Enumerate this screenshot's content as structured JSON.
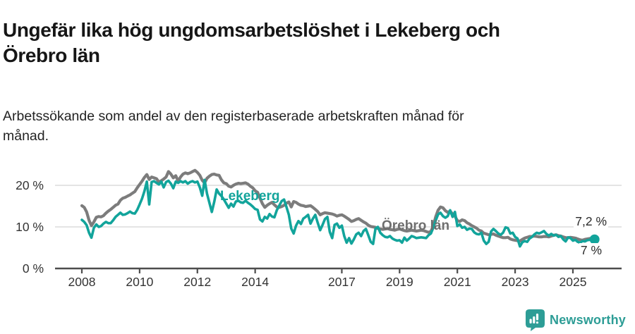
{
  "header": {
    "title_line1": "Ungefär lika hög ungdomsarbetslöshet i Lekeberg och",
    "title_line2": "Örebro län",
    "subtitle_line1": "Arbetssökande som andel av den registerbaserade arbetskraften månad för",
    "subtitle_line2": "månad."
  },
  "footer": {
    "brand": "Newsworthy",
    "brand_color": "#2d9d96"
  },
  "chart_data": {
    "type": "line",
    "title": "Ungefär lika hög ungdomsarbetslöshet i Lekeberg och Örebro län",
    "subtitle": "Arbetssökande som andel av den registerbaserade arbetskraften månad för månad.",
    "unit": "%",
    "frequency": "monthly",
    "start_year": 2008,
    "end_point": "2025-10",
    "ylim": [
      0,
      25
    ],
    "grid": "horizontal",
    "colors": {
      "lekeberg": "#12a49b",
      "orebro": "#7c7c7c",
      "axis": "#4d4d4d",
      "gridline": "#dbdbdb"
    },
    "x_ticks": [
      {
        "value": 2008,
        "label": "2008"
      },
      {
        "value": 2010,
        "label": "2010"
      },
      {
        "value": 2012,
        "label": "2012"
      },
      {
        "value": 2014,
        "label": "2014"
      },
      {
        "value": 2017,
        "label": "2017"
      },
      {
        "value": 2019,
        "label": "2019"
      },
      {
        "value": 2021,
        "label": "2021"
      },
      {
        "value": 2023,
        "label": "2023"
      },
      {
        "value": 2025,
        "label": "2025"
      }
    ],
    "y_ticks": [
      {
        "value": 0,
        "label": "0 %"
      },
      {
        "value": 10,
        "label": "10 %"
      },
      {
        "value": 20,
        "label": "20 %"
      }
    ],
    "series": [
      {
        "name": "Örebro län",
        "color": "#7c7c7c",
        "end_label": "7,2 %",
        "end_value": 7.2,
        "values": [
          15.1,
          14.7,
          13.6,
          11.6,
          10.3,
          11.2,
          12.3,
          12.5,
          12.4,
          12.7,
          13.3,
          13.8,
          14.2,
          14.7,
          15.2,
          15.5,
          16.4,
          16.9,
          17.1,
          17.4,
          17.7,
          18.1,
          18.5,
          19.4,
          20.2,
          21.0,
          21.9,
          22.6,
          21.4,
          22.0,
          21.8,
          21.6,
          20.8,
          21.1,
          21.5,
          22.0,
          23.3,
          22.7,
          21.8,
          22.3,
          21.0,
          22.0,
          22.7,
          23.0,
          22.8,
          23.0,
          23.3,
          23.6,
          23.1,
          22.4,
          21.2,
          20.6,
          21.7,
          22.2,
          22.6,
          22.7,
          22.5,
          22.4,
          21.3,
          20.6,
          20.4,
          19.8,
          19.6,
          20.0,
          20.3,
          20.5,
          20.4,
          20.5,
          20.6,
          20.3,
          19.8,
          19.4,
          18.7,
          18.3,
          16.9,
          15.6,
          14.7,
          15.2,
          15.6,
          15.9,
          15.3,
          14.8,
          14.7,
          14.9,
          15.2,
          15.7,
          16.0,
          14.8,
          16.1,
          15.9,
          15.5,
          15.2,
          15.1,
          14.9,
          15.0,
          15.1,
          14.7,
          14.2,
          13.7,
          12.9,
          13.2,
          13.4,
          13.3,
          13.2,
          13.1,
          12.9,
          12.6,
          12.8,
          12.9,
          12.6,
          12.2,
          11.8,
          11.3,
          11.5,
          11.8,
          12.0,
          11.6,
          11.2,
          10.9,
          10.4,
          10.1,
          10.0,
          9.9,
          9.6,
          9.5,
          9.4,
          9.5,
          9.6,
          9.4,
          9.3,
          9.2,
          9.4,
          9.5,
          9.3,
          9.1,
          9.0,
          9.1,
          9.2,
          9.1,
          9.0,
          9.1,
          9.2,
          9.1,
          8.9,
          8.7,
          8.9,
          10.2,
          12.4,
          14.0,
          14.8,
          14.6,
          13.9,
          13.5,
          13.8,
          13.1,
          12.6,
          11.5,
          11.3,
          11.7,
          11.5,
          11.0,
          10.7,
          10.3,
          10.0,
          9.7,
          9.2,
          9.0,
          8.5,
          8.3,
          8.1,
          8.2,
          8.3,
          8.0,
          7.8,
          7.6,
          7.4,
          7.4,
          7.5,
          7.1,
          6.9,
          6.8,
          6.7,
          6.6,
          7.0,
          7.3,
          7.5,
          7.7,
          7.7,
          7.8,
          7.7,
          7.6,
          7.6,
          7.7,
          7.7,
          7.6,
          7.8,
          8.0,
          8.1,
          7.9,
          7.8,
          7.6,
          7.4,
          7.4,
          7.5,
          7.4,
          7.3,
          7.1,
          6.9,
          6.8,
          7.0,
          7.1,
          7.2,
          7.2,
          7.2
        ]
      },
      {
        "name": "Lekeberg",
        "color": "#12a49b",
        "end_label": "7 %",
        "end_value": 7.0,
        "values": [
          11.7,
          11.2,
          10.4,
          8.6,
          7.4,
          9.8,
          10.6,
          10.0,
          10.2,
          10.8,
          11.2,
          10.9,
          10.9,
          11.6,
          12.4,
          12.9,
          13.4,
          12.9,
          13.0,
          13.3,
          13.7,
          13.3,
          13.2,
          14.1,
          15.4,
          16.8,
          18.6,
          20.9,
          15.4,
          20.8,
          21.0,
          20.6,
          20.2,
          20.9,
          19.5,
          20.8,
          21.1,
          20.4,
          19.3,
          20.9,
          20.6,
          21.0,
          20.7,
          21.0,
          20.4,
          20.8,
          21.0,
          20.7,
          20.9,
          19.5,
          17.5,
          21.3,
          18.0,
          15.8,
          13.6,
          16.0,
          19.0,
          18.0,
          17.4,
          16.6,
          15.6,
          14.6,
          15.6,
          14.9,
          16.1,
          16.3,
          15.9,
          15.8,
          16.3,
          15.8,
          15.4,
          14.9,
          14.3,
          14.1,
          11.8,
          11.3,
          12.4,
          12.0,
          13.1,
          12.5,
          12.3,
          14.0,
          15.1,
          16.2,
          16.6,
          14.8,
          12.9,
          9.6,
          8.4,
          10.3,
          11.4,
          10.7,
          12.0,
          12.4,
          12.9,
          10.8,
          12.0,
          12.9,
          11.0,
          9.2,
          10.5,
          11.9,
          12.4,
          8.8,
          7.3,
          10.5,
          10.8,
          9.8,
          10.3,
          7.8,
          6.2,
          7.3,
          6.0,
          7.0,
          8.2,
          8.6,
          7.8,
          9.0,
          9.5,
          8.0,
          6.4,
          5.9,
          9.6,
          10.0,
          8.6,
          8.0,
          7.6,
          7.5,
          7.8,
          7.2,
          6.9,
          6.7,
          6.8,
          6.2,
          7.4,
          6.7,
          7.2,
          7.8,
          7.6,
          7.3,
          7.4,
          7.5,
          7.4,
          7.3,
          8.0,
          8.4,
          9.8,
          11.5,
          13.0,
          13.4,
          12.6,
          12.2,
          12.6,
          14.0,
          12.4,
          13.6,
          10.2,
          10.6,
          9.8,
          10.0,
          9.3,
          9.6,
          9.5,
          8.7,
          8.3,
          8.2,
          8.6,
          6.7,
          5.9,
          6.4,
          8.9,
          9.5,
          9.0,
          8.4,
          8.1,
          8.6,
          9.9,
          9.7,
          8.4,
          8.6,
          7.6,
          7.2,
          5.3,
          6.3,
          6.6,
          6.4,
          7.2,
          7.6,
          8.2,
          8.6,
          8.4,
          8.7,
          9.0,
          8.3,
          7.9,
          8.3,
          7.9,
          8.1,
          7.6,
          7.8,
          7.0,
          6.5,
          7.5,
          7.3,
          6.7,
          6.9,
          6.4,
          6.2,
          6.6,
          6.5,
          6.8,
          6.9,
          6.9,
          7.0
        ]
      }
    ]
  }
}
